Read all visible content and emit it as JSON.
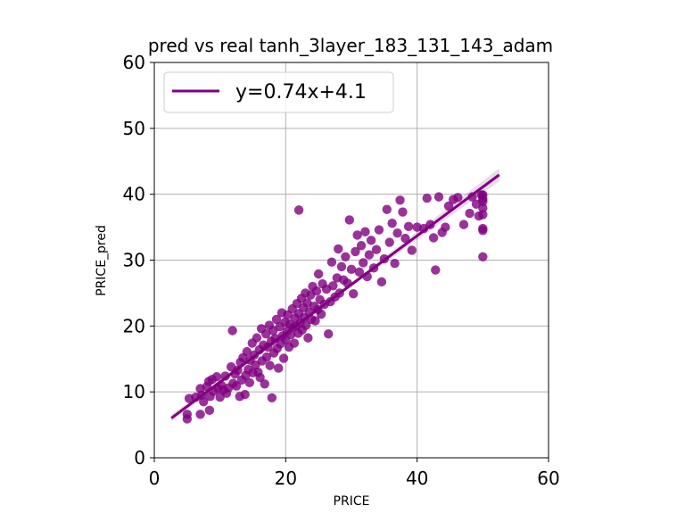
{
  "chart_data": {
    "type": "scatter",
    "title": "pred vs real tanh_3layer_183_131_143_adam",
    "xlabel": "PRICE",
    "ylabel": "PRICE_pred",
    "xlim": [
      0,
      60
    ],
    "ylim": [
      0,
      60
    ],
    "xticks": [
      "0",
      "20",
      "40",
      "60"
    ],
    "yticks": [
      "0",
      "10",
      "20",
      "30",
      "40",
      "50",
      "60"
    ],
    "grid": true,
    "legend": {
      "placement": "top-left",
      "entries": [
        "y=0.74x+4.1"
      ]
    },
    "fit_line": {
      "label": "y=0.74x+4.1",
      "slope": 0.74,
      "intercept": 4.1,
      "x_range": [
        2.6,
        52.5
      ],
      "color": "#800080"
    },
    "point_color": "#800080",
    "points": [
      [
        5.0,
        5.9
      ],
      [
        5.0,
        6.6
      ],
      [
        5.3,
        9.0
      ],
      [
        6.3,
        9.2
      ],
      [
        7.0,
        6.6
      ],
      [
        7.0,
        10.5
      ],
      [
        7.2,
        9.5
      ],
      [
        7.5,
        8.5
      ],
      [
        8.0,
        10.8
      ],
      [
        8.3,
        11.6
      ],
      [
        8.4,
        7.2
      ],
      [
        8.5,
        9.3
      ],
      [
        8.8,
        11.9
      ],
      [
        9.0,
        10.1
      ],
      [
        9.5,
        12.3
      ],
      [
        9.7,
        10.5
      ],
      [
        10.0,
        9.2
      ],
      [
        10.2,
        11.0
      ],
      [
        10.5,
        10.3
      ],
      [
        10.8,
        12.4
      ],
      [
        11.0,
        9.8
      ],
      [
        11.3,
        10.6
      ],
      [
        11.7,
        13.8
      ],
      [
        11.9,
        19.3
      ],
      [
        12.0,
        11.3
      ],
      [
        12.3,
        12.7
      ],
      [
        12.5,
        10.9
      ],
      [
        12.7,
        13.3
      ],
      [
        13.0,
        9.3
      ],
      [
        13.1,
        14.5
      ],
      [
        13.3,
        11.8
      ],
      [
        13.5,
        15.2
      ],
      [
        13.8,
        9.6
      ],
      [
        13.9,
        12.5
      ],
      [
        14.1,
        16.1
      ],
      [
        14.3,
        13.4
      ],
      [
        14.5,
        11.4
      ],
      [
        14.6,
        14.8
      ],
      [
        14.9,
        17.4
      ],
      [
        15.0,
        12.9
      ],
      [
        15.2,
        15.6
      ],
      [
        15.4,
        14.1
      ],
      [
        15.6,
        18.2
      ],
      [
        15.8,
        13.0
      ],
      [
        16.0,
        16.4
      ],
      [
        16.1,
        12.2
      ],
      [
        16.3,
        19.6
      ],
      [
        16.4,
        14.7
      ],
      [
        16.6,
        17.1
      ],
      [
        16.8,
        11.2
      ],
      [
        17.0,
        18.8
      ],
      [
        17.1,
        15.3
      ],
      [
        17.3,
        16.8
      ],
      [
        17.5,
        20.1
      ],
      [
        17.6,
        14.0
      ],
      [
        17.8,
        17.7
      ],
      [
        17.9,
        9.1
      ],
      [
        18.1,
        19.3
      ],
      [
        18.2,
        15.9
      ],
      [
        18.4,
        18.1
      ],
      [
        18.6,
        21.0
      ],
      [
        18.7,
        16.6
      ],
      [
        18.9,
        13.6
      ],
      [
        19.1,
        19.9
      ],
      [
        19.2,
        17.3
      ],
      [
        19.4,
        22.0
      ],
      [
        19.5,
        18.5
      ],
      [
        19.7,
        15.1
      ],
      [
        19.9,
        20.6
      ],
      [
        20.0,
        17.9
      ],
      [
        20.2,
        19.2
      ],
      [
        20.3,
        21.7
      ],
      [
        20.5,
        16.8
      ],
      [
        20.6,
        20.3
      ],
      [
        20.8,
        18.7
      ],
      [
        21.0,
        22.6
      ],
      [
        21.1,
        19.8
      ],
      [
        21.3,
        17.4
      ],
      [
        21.4,
        21.2
      ],
      [
        21.6,
        20.0
      ],
      [
        21.7,
        23.4
      ],
      [
        21.9,
        18.9
      ],
      [
        22.0,
        21.9
      ],
      [
        22.0,
        37.6
      ],
      [
        22.2,
        20.5
      ],
      [
        22.4,
        24.2
      ],
      [
        22.5,
        19.4
      ],
      [
        22.7,
        22.8
      ],
      [
        22.8,
        21.3
      ],
      [
        23.0,
        25.0
      ],
      [
        23.1,
        20.1
      ],
      [
        23.3,
        23.5
      ],
      [
        23.4,
        18.2
      ],
      [
        23.6,
        22.1
      ],
      [
        23.8,
        24.7
      ],
      [
        23.9,
        21.0
      ],
      [
        24.1,
        26.0
      ],
      [
        24.3,
        23.0
      ],
      [
        24.5,
        20.8
      ],
      [
        24.7,
        25.3
      ],
      [
        24.9,
        22.5
      ],
      [
        25.0,
        27.9
      ],
      [
        25.2,
        24.0
      ],
      [
        25.4,
        21.8
      ],
      [
        25.6,
        26.4
      ],
      [
        25.9,
        23.3
      ],
      [
        26.2,
        25.6
      ],
      [
        26.5,
        18.8
      ],
      [
        26.8,
        23.7
      ],
      [
        27.0,
        29.7
      ],
      [
        27.2,
        26.1
      ],
      [
        27.5,
        24.4
      ],
      [
        27.8,
        27.3
      ],
      [
        28.0,
        31.7
      ],
      [
        28.2,
        25.0
      ],
      [
        28.5,
        29.0
      ],
      [
        28.8,
        27.0
      ],
      [
        29.1,
        30.5
      ],
      [
        29.4,
        26.5
      ],
      [
        29.7,
        36.1
      ],
      [
        30.0,
        28.6
      ],
      [
        30.3,
        24.9
      ],
      [
        30.6,
        31.3
      ],
      [
        30.9,
        33.8
      ],
      [
        31.2,
        28.2
      ],
      [
        31.5,
        32.2
      ],
      [
        31.8,
        29.6
      ],
      [
        32.1,
        34.3
      ],
      [
        32.4,
        27.5
      ],
      [
        32.7,
        30.8
      ],
      [
        33.0,
        33.0
      ],
      [
        33.4,
        28.8
      ],
      [
        33.8,
        31.6
      ],
      [
        34.2,
        34.6
      ],
      [
        34.6,
        26.7
      ],
      [
        35.0,
        30.2
      ],
      [
        35.4,
        37.7
      ],
      [
        35.8,
        32.7
      ],
      [
        36.2,
        35.6
      ],
      [
        36.6,
        29.5
      ],
      [
        37.0,
        34.1
      ],
      [
        37.4,
        39.1
      ],
      [
        37.8,
        37.3
      ],
      [
        38.2,
        33.3
      ],
      [
        38.7,
        35.1
      ],
      [
        39.2,
        31.5
      ],
      [
        40.0,
        35.0
      ],
      [
        41.0,
        34.8
      ],
      [
        41.5,
        39.4
      ],
      [
        42.0,
        35.4
      ],
      [
        42.5,
        33.4
      ],
      [
        42.8,
        28.5
      ],
      [
        43.3,
        39.6
      ],
      [
        43.8,
        34.2
      ],
      [
        44.3,
        35.0
      ],
      [
        44.8,
        38.2
      ],
      [
        45.5,
        39.2
      ],
      [
        46.2,
        39.5
      ],
      [
        47.1,
        35.4
      ],
      [
        48.0,
        37.1
      ],
      [
        48.4,
        39.6
      ],
      [
        49.0,
        38.5
      ],
      [
        49.4,
        36.7
      ],
      [
        49.8,
        39.9
      ],
      [
        50.0,
        30.5
      ],
      [
        50.0,
        34.5
      ],
      [
        50.0,
        34.8
      ],
      [
        50.0,
        36.9
      ],
      [
        50.0,
        37.9
      ],
      [
        50.0,
        38.9
      ],
      [
        50.0,
        39.3
      ],
      [
        50.0,
        39.9
      ]
    ]
  }
}
